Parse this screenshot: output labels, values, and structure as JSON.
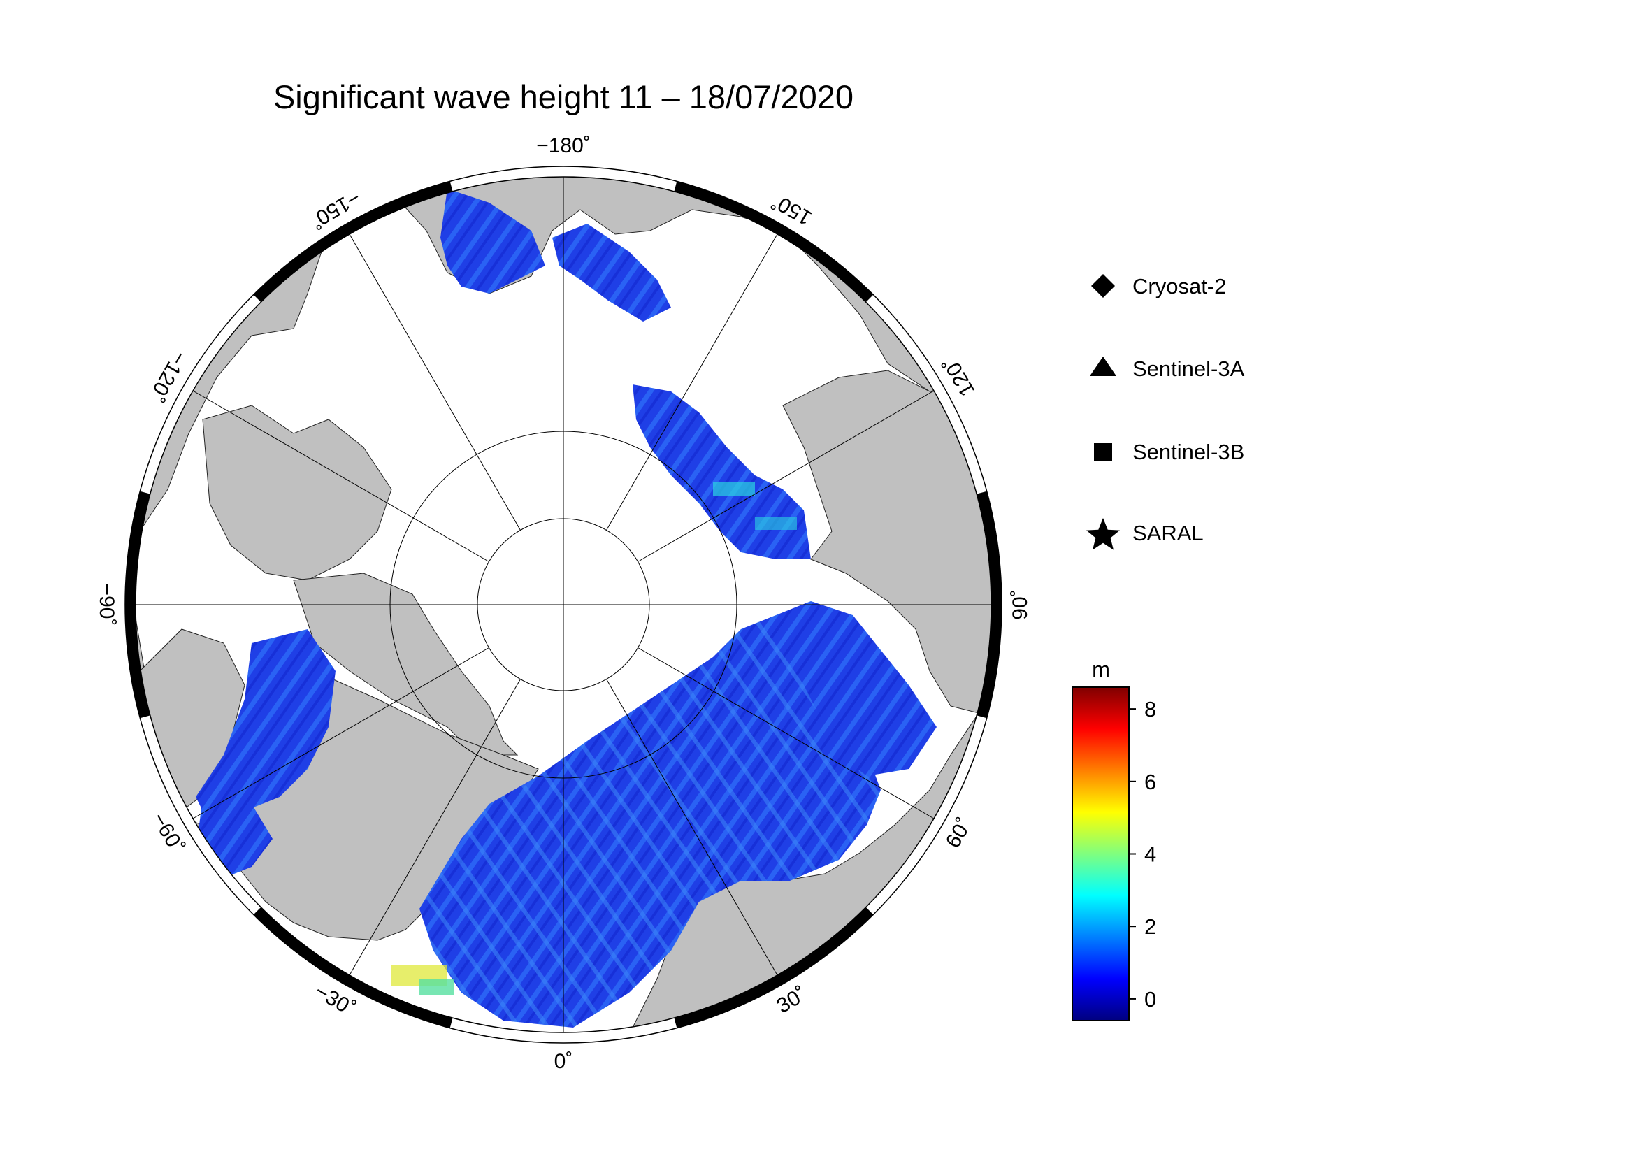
{
  "title": "Significant wave height 11 – 18/07/2020",
  "longitude_labels": [
    {
      "lon": -180,
      "text": "−180˚"
    },
    {
      "lon": 150,
      "text": "150˚"
    },
    {
      "lon": 120,
      "text": "120˚"
    },
    {
      "lon": 90,
      "text": "90˚"
    },
    {
      "lon": 60,
      "text": "60˚"
    },
    {
      "lon": 30,
      "text": "30˚"
    },
    {
      "lon": 0,
      "text": "0˚"
    },
    {
      "lon": -30,
      "text": "−30˚"
    },
    {
      "lon": -60,
      "text": "−60˚"
    },
    {
      "lon": -90,
      "text": "−90˚"
    },
    {
      "lon": -120,
      "text": "−120˚"
    },
    {
      "lon": -150,
      "text": "−150˚"
    }
  ],
  "legend": {
    "items": [
      {
        "label": "Cryosat-2",
        "marker": "diamond"
      },
      {
        "label": "Sentinel-3A",
        "marker": "triangle"
      },
      {
        "label": "Sentinel-3B",
        "marker": "square"
      },
      {
        "label": "SARAL",
        "marker": "star"
      }
    ]
  },
  "colorbar": {
    "unit": "m",
    "range": [
      -0.6,
      8.6
    ],
    "ticks": [
      {
        "value": 0,
        "text": "0"
      },
      {
        "value": 2,
        "text": "2"
      },
      {
        "value": 4,
        "text": "4"
      },
      {
        "value": 6,
        "text": "6"
      },
      {
        "value": 8,
        "text": "8"
      }
    ],
    "colormap": "jet"
  },
  "colors": {
    "land": "#c0c0c0",
    "ice": "#ffffff",
    "water_low": "#1a3cf0",
    "frame": "#000000"
  }
}
